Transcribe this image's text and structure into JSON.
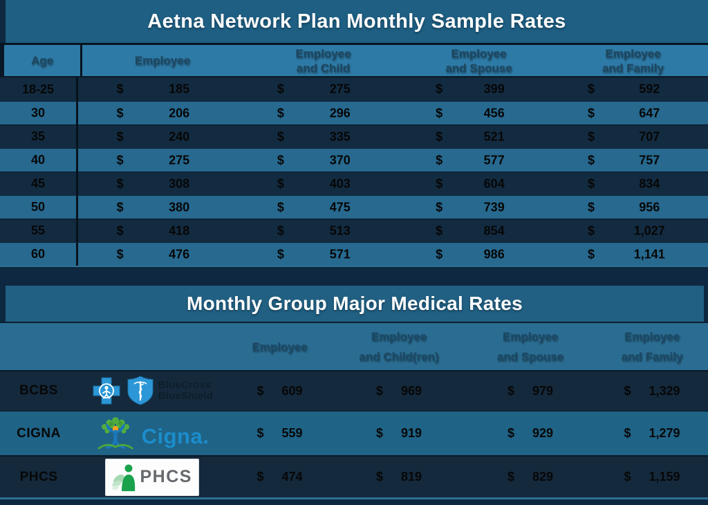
{
  "colors": {
    "titleTeal": "#1E5F83",
    "t1HeaderBlue": "#2E7AA7",
    "rowDark": "#132B40",
    "rowLight": "#27698F",
    "gapNavy": "#0D2840",
    "t2TitleTeal": "#216083",
    "t2HeaderTeal": "#2B6D92",
    "cignaTeal": "#1F6386",
    "rowDark2": "#14293C",
    "bottomLine": "#2E7195",
    "headerText": "#1D4760",
    "headerText2": "#1B4965"
  },
  "table1": {
    "title": "Aetna Network Plan Monthly Sample Rates",
    "currency": "$",
    "header": {
      "age": "Age",
      "employee": "Employee",
      "child": "Employee\nand Child",
      "spouse": "Employee\nand Spouse",
      "family": "Employee\nand Family"
    },
    "rows": [
      {
        "age": "18-25",
        "employee": "185",
        "child": "275",
        "spouse": "399",
        "family": "592"
      },
      {
        "age": "30",
        "employee": "206",
        "child": "296",
        "spouse": "456",
        "family": "647"
      },
      {
        "age": "35",
        "employee": "240",
        "child": "335",
        "spouse": "521",
        "family": "707"
      },
      {
        "age": "40",
        "employee": "275",
        "child": "370",
        "spouse": "577",
        "family": "757"
      },
      {
        "age": "45",
        "employee": "308",
        "child": "403",
        "spouse": "604",
        "family": "834"
      },
      {
        "age": "50",
        "employee": "380",
        "child": "475",
        "spouse": "739",
        "family": "956"
      },
      {
        "age": "55",
        "employee": "418",
        "child": "513",
        "spouse": "854",
        "family": "1,027"
      },
      {
        "age": "60",
        "employee": "476",
        "child": "571",
        "spouse": "986",
        "family": "1,141"
      }
    ]
  },
  "table2": {
    "title": "Monthly Group Major Medical Rates",
    "currency": "$",
    "header": {
      "employee": "Employee",
      "child": "Employee\nand Child(ren)",
      "spouse": "Employee\nand Spouse",
      "family": "Employee\nand Family"
    },
    "rows": [
      {
        "carrier": "BCBS",
        "employee": "609",
        "child": "969",
        "spouse": "979",
        "family": "1,329"
      },
      {
        "carrier": "CIGNA",
        "employee": "559",
        "child": "919",
        "spouse": "929",
        "family": "1,279"
      },
      {
        "carrier": "PHCS",
        "employee": "474",
        "child": "819",
        "spouse": "829",
        "family": "1,159"
      }
    ],
    "logos": {
      "bcbs": {
        "line1": "BlueCross",
        "line2": "BlueShield"
      },
      "cigna": {
        "wordmark": "Cigna."
      },
      "phcs": {
        "wordmark": "PHCS"
      }
    }
  }
}
